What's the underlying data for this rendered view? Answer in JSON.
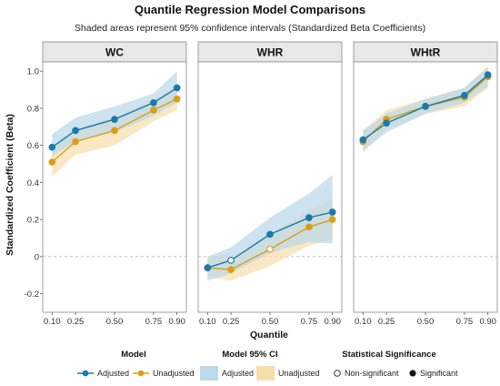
{
  "chart_data": {
    "type": "line",
    "title": "Quantile Regression Model Comparisons",
    "subtitle": "Shaded areas represent 95% confidence intervals (Standardized Beta Coefficients)",
    "xlabel": "Quantile",
    "ylabel": "Standardized Coefficient (Beta)",
    "ylim": [
      -0.3,
      1.05
    ],
    "y_ticks": [
      -0.2,
      0,
      0.2,
      0.4,
      0.6,
      0.8,
      1.0
    ],
    "y_tick_labels": [
      "-0.2",
      "0",
      "0.2",
      "0.4",
      "0.6",
      "0.8",
      "1.0"
    ],
    "x": [
      0.1,
      0.25,
      0.5,
      0.75,
      0.9
    ],
    "x_tick_labels": [
      "0.10",
      "0.25",
      "0.50",
      "0.75",
      "0.90"
    ],
    "xlim": [
      0.04,
      0.96
    ],
    "reference_line": 0,
    "colors": {
      "adjusted": "#1a7aa8",
      "unadjusted": "#d9a015",
      "adjusted_ci": "#bcd9ea",
      "unadjusted_ci": "#f6deaa"
    },
    "panels": [
      {
        "label": "WC",
        "series": [
          {
            "name": "Adjusted",
            "values": [
              0.59,
              0.68,
              0.74,
              0.83,
              0.91
            ],
            "ci_low": [
              0.54,
              0.62,
              0.67,
              0.76,
              0.83
            ],
            "ci_high": [
              0.66,
              0.75,
              0.81,
              0.88,
              1.0
            ],
            "significant": [
              true,
              true,
              true,
              true,
              true
            ]
          },
          {
            "name": "Unadjusted",
            "values": [
              0.51,
              0.62,
              0.68,
              0.79,
              0.85
            ],
            "ci_low": [
              0.43,
              0.55,
              0.6,
              0.73,
              0.79
            ],
            "ci_high": [
              0.58,
              0.69,
              0.75,
              0.85,
              0.91
            ],
            "significant": [
              true,
              true,
              true,
              true,
              true
            ]
          }
        ]
      },
      {
        "label": "WHR",
        "series": [
          {
            "name": "Adjusted",
            "values": [
              -0.06,
              -0.02,
              0.12,
              0.21,
              0.24
            ],
            "ci_low": [
              -0.13,
              -0.09,
              0.02,
              0.08,
              0.07
            ],
            "ci_high": [
              0.0,
              0.05,
              0.21,
              0.34,
              0.44
            ],
            "significant": [
              true,
              false,
              true,
              true,
              true
            ]
          },
          {
            "name": "Unadjusted",
            "values": [
              -0.06,
              -0.07,
              0.04,
              0.16,
              0.2
            ],
            "ci_low": [
              -0.11,
              -0.13,
              -0.05,
              0.06,
              0.09
            ],
            "ci_high": [
              0.0,
              0.0,
              0.12,
              0.25,
              0.31
            ],
            "significant": [
              true,
              true,
              false,
              true,
              true
            ]
          }
        ]
      },
      {
        "label": "WHtR",
        "series": [
          {
            "name": "Adjusted",
            "values": [
              0.63,
              0.72,
              0.81,
              0.87,
              0.98
            ],
            "ci_low": [
              0.57,
              0.67,
              0.77,
              0.83,
              0.92
            ],
            "ci_high": [
              0.68,
              0.77,
              0.85,
              0.91,
              1.02
            ],
            "significant": [
              true,
              true,
              true,
              true,
              true
            ]
          },
          {
            "name": "Unadjusted",
            "values": [
              0.62,
              0.74,
              0.81,
              0.86,
              0.97
            ],
            "ci_low": [
              0.56,
              0.69,
              0.77,
              0.81,
              0.91
            ],
            "ci_high": [
              0.68,
              0.79,
              0.85,
              0.91,
              1.03
            ],
            "significant": [
              true,
              true,
              true,
              true,
              true
            ]
          }
        ]
      }
    ],
    "legend": {
      "placement": "bottom",
      "groups": [
        {
          "title": "Model",
          "items": [
            "Adjusted",
            "Unadjusted"
          ]
        },
        {
          "title": "Model 95% CI",
          "items": [
            "Adjusted",
            "Unadjusted"
          ]
        },
        {
          "title": "Statistical Significance",
          "items": [
            "Non-significant",
            "Significant"
          ]
        }
      ]
    }
  }
}
